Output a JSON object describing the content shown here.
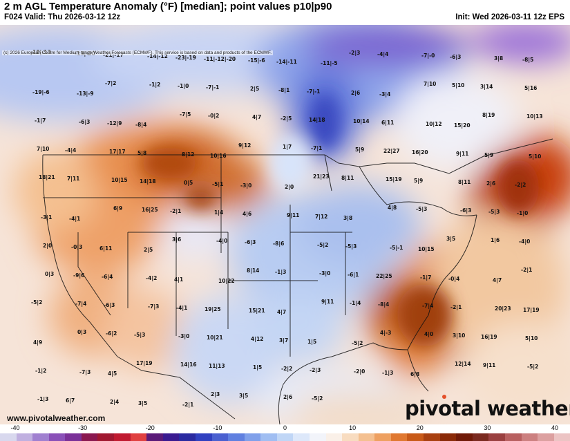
{
  "header": {
    "title": "2 m AGL Temperature Anomaly (°F) [median]; point values p10|p90",
    "valid": "F024 Valid: Thu 2026-03-12 12z",
    "init": "Init: Wed 2026-03-11 12z EPS"
  },
  "map": {
    "copyright": "(c) 2026 European Centre for Medium-range Weather Forecasts (ECMWF). This service is based on data and products of the ECMWF.",
    "website": "www.pivotalweather.com",
    "brand_pre": "piv",
    "brand_post": "tal weather",
    "point_values": [
      "-18|-13",
      "-13|-10",
      "-21|-17",
      "-14|-12",
      "-23|-19",
      "-11|-12|-20",
      "-15|-6",
      "-14|-11",
      "-11|-5",
      "-2|3",
      "-4|4",
      "-7|-0",
      "-6|3",
      "3|8",
      "-8|5",
      "-19|-6",
      "-13|-9",
      "-7|2",
      "-1|2",
      "-1|0",
      "-7|-1",
      "2|5",
      "-8|1",
      "-7|-1",
      "2|6",
      "-3|4",
      "7|10",
      "5|10",
      "3|14",
      "5|16",
      "-1|7",
      "-6|3",
      "-12|9",
      "-8|4",
      "-7|5",
      "-0|2",
      "4|7",
      "-2|5",
      "14|18",
      "10|14",
      "6|11",
      "10|12",
      "15|20",
      "8|19",
      "10|13",
      "7|10",
      "-4|4",
      "17|17",
      "5|8",
      "8|12",
      "10|16",
      "9|12",
      "1|7",
      "-7|1",
      "5|9",
      "22|27",
      "16|20",
      "9|11",
      "5|9",
      "5|10",
      "18|21",
      "7|11",
      "10|15",
      "14|18",
      "0|5",
      "-5|1",
      "-3|0",
      "2|0",
      "21|23",
      "8|11",
      "15|19",
      "5|9",
      "8|11",
      "2|6",
      "-2|2",
      "-3|1",
      "-4|1",
      "6|9",
      "16|25",
      "-2|1",
      "1|4",
      "4|6",
      "9|11",
      "7|12",
      "3|8",
      "4|8",
      "-5|3",
      "-6|3",
      "-5|3",
      "-1|0",
      "2|0",
      "-0|3",
      "6|11",
      "2|5",
      "3|6",
      "-4|0",
      "-6|3",
      "-8|6",
      "-5|2",
      "-5|3",
      "-5|-1",
      "10|15",
      "3|5",
      "1|6",
      "-4|0",
      "0|3",
      "-9|6",
      "-6|4",
      "-4|2",
      "4|1",
      "10|22",
      "8|14",
      "-1|3",
      "-3|0",
      "-6|1",
      "22|25",
      "-1|7",
      "-0|4",
      "4|7",
      "-2|1",
      "-5|2",
      "-7|4",
      "-6|3",
      "-7|3",
      "-4|1",
      "19|25",
      "15|21",
      "4|7",
      "9|11",
      "-1|4",
      "-8|4",
      "-7|4",
      "-2|1",
      "20|23",
      "17|19",
      "4|9",
      "0|3",
      "-6|2",
      "-5|3",
      "-3|0",
      "10|21",
      "4|12",
      "3|7",
      "1|5",
      "-5|2",
      "4|-3",
      "4|0",
      "3|10",
      "16|19",
      "5|10",
      "-1|2",
      "-7|3",
      "4|5",
      "17|19",
      "14|16",
      "11|13",
      "1|5",
      "-2|2",
      "-2|3",
      "-2|0",
      "-1|3",
      "6|8",
      "12|14",
      "9|11",
      "-5|2",
      "-1|3",
      "6|7",
      "2|4",
      "3|5",
      "-2|1",
      "2|3",
      "3|5",
      "2|6",
      "-5|2"
    ]
  },
  "colorbar": {
    "ticks": [
      "-40",
      "-30",
      "-20",
      "-10",
      "0",
      "10",
      "20",
      "30",
      "40"
    ],
    "colors": [
      "#d8d8ee",
      "#c0b0e0",
      "#a080d0",
      "#8a50b8",
      "#7a3098",
      "#8a1850",
      "#a01830",
      "#c01a30",
      "#e04040",
      "#5a1a78",
      "#3a1a90",
      "#2a2aa0",
      "#3040c0",
      "#4a60d0",
      "#6080e0",
      "#80a0ea",
      "#a0bef2",
      "#c0d6f6",
      "#dde8fa",
      "#f2f4fa",
      "#faf0e8",
      "#f8dcc0",
      "#f4c090",
      "#eea060",
      "#e07830",
      "#c85a18",
      "#a84010",
      "#8a2a08",
      "#701a08",
      "#7a2a20",
      "#9a4040",
      "#b86060",
      "#cc8080",
      "#dca0a0",
      "#ecc4c4"
    ]
  }
}
